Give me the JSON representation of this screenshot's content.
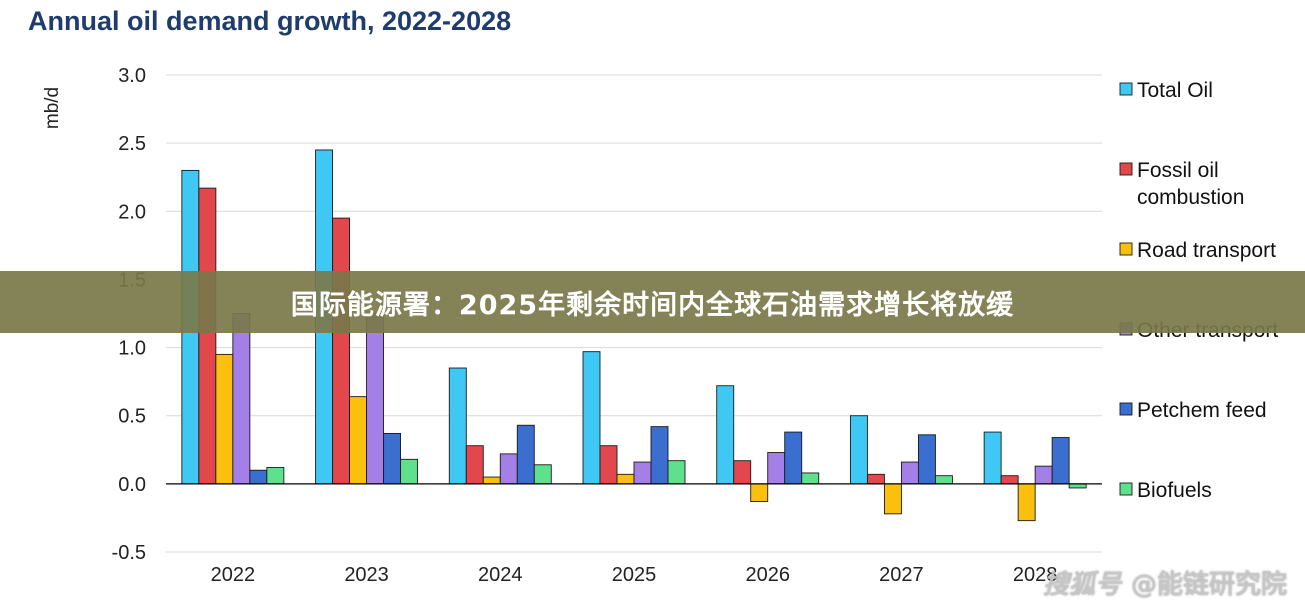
{
  "banner": {
    "text": "国际能源署：2025年剩余时间内全球石油需求增长将放缓"
  },
  "watermark": {
    "brand": "搜狐号",
    "handle": "@能链研究院"
  },
  "chart_data": {
    "type": "bar",
    "title": "Annual oil demand growth, 2022-2028",
    "ylabel": "mb/d",
    "xlabel": "",
    "ylim": [
      -0.5,
      3.0
    ],
    "yticks": [
      -0.5,
      0.0,
      0.5,
      1.0,
      1.5,
      2.0,
      2.5,
      3.0
    ],
    "grid": true,
    "legend_position": "right",
    "categories": [
      "2022",
      "2023",
      "2024",
      "2025",
      "2026",
      "2027",
      "2028"
    ],
    "series": [
      {
        "name": "Total Oil",
        "color": "#3fc8f4",
        "values": [
          2.3,
          2.45,
          0.85,
          0.97,
          0.72,
          0.5,
          0.38
        ]
      },
      {
        "name": "Fossil oil combustion",
        "color": "#e2474b",
        "values": [
          2.17,
          1.95,
          0.28,
          0.28,
          0.17,
          0.07,
          0.06
        ]
      },
      {
        "name": "Road transport",
        "color": "#fbbf0e",
        "values": [
          0.95,
          0.64,
          0.05,
          0.07,
          -0.13,
          -0.22,
          -0.27
        ]
      },
      {
        "name": "Other transport",
        "color": "#a47fe8",
        "values": [
          1.25,
          1.25,
          0.22,
          0.16,
          0.23,
          0.16,
          0.13
        ]
      },
      {
        "name": "Petchem feed",
        "color": "#3a6ecf",
        "values": [
          0.1,
          0.37,
          0.43,
          0.42,
          0.38,
          0.36,
          0.34
        ]
      },
      {
        "name": "Biofuels",
        "color": "#5fe08c",
        "values": [
          0.12,
          0.18,
          0.14,
          0.17,
          0.08,
          0.06,
          -0.03
        ]
      }
    ]
  }
}
